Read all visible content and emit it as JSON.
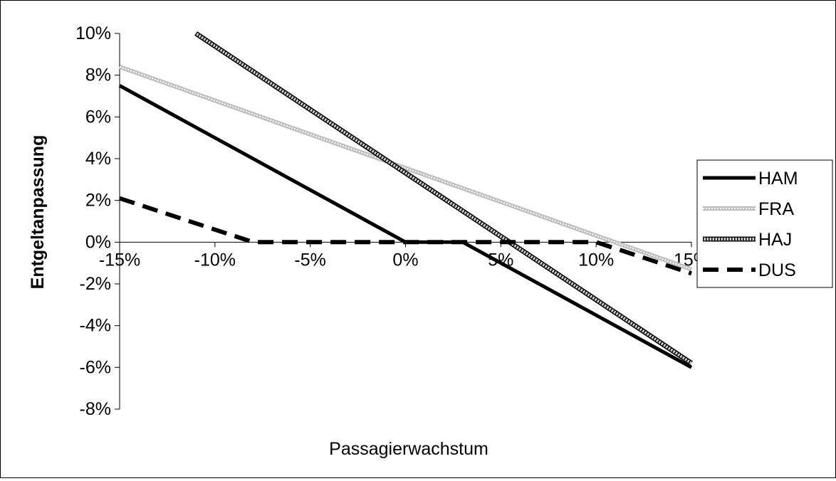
{
  "chart_data": {
    "type": "line",
    "title": "",
    "xlabel": "Passagierwachstum",
    "ylabel": "Entgeltanpassung",
    "xlim": [
      -15,
      15
    ],
    "ylim": [
      -8,
      10
    ],
    "x_ticks": [
      "-15%",
      "-10%",
      "-5%",
      "0%",
      "5%",
      "10%",
      "15%"
    ],
    "y_ticks": [
      "10%",
      "8%",
      "6%",
      "4%",
      "2%",
      "0%",
      "-2%",
      "-4%",
      "-6%",
      "-8%"
    ],
    "legend_position": "right",
    "series": [
      {
        "name": "HAM",
        "style": "solid",
        "color": "#000000",
        "x": [
          -15,
          0,
          3,
          15
        ],
        "y": [
          7.5,
          0,
          0,
          -6
        ]
      },
      {
        "name": "FRA",
        "style": "hatched-light",
        "color": "#bdbdbd",
        "x": [
          -15,
          15
        ],
        "y": [
          8.4,
          -1.3
        ]
      },
      {
        "name": "HAJ",
        "style": "hatched-dense",
        "color": "#6a6a6a",
        "x": [
          -11,
          15
        ],
        "y": [
          10,
          -5.8
        ]
      },
      {
        "name": "DUS",
        "style": "dashed",
        "color": "#000000",
        "x": [
          -15,
          -8,
          10,
          15
        ],
        "y": [
          2.1,
          0,
          0,
          -1.5
        ]
      }
    ]
  }
}
